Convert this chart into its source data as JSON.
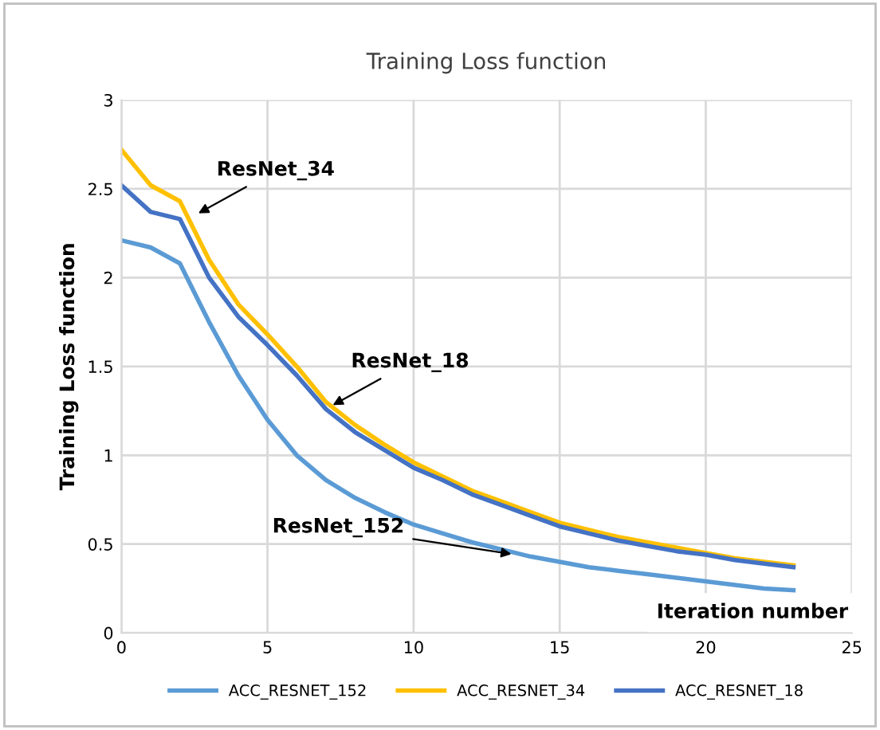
{
  "chart_data": {
    "type": "line",
    "title": "Training Loss function",
    "ylabel": "Training Loss function",
    "xlabel": "Iteration number",
    "x": [
      0,
      1,
      2,
      3,
      4,
      5,
      6,
      7,
      8,
      9,
      10,
      11,
      12,
      13,
      14,
      15,
      16,
      17,
      18,
      19,
      20,
      21,
      22,
      23
    ],
    "series": [
      {
        "name": "ACC_RESNET_152",
        "color": "#5b9bd5",
        "values": [
          2.21,
          2.17,
          2.08,
          1.75,
          1.45,
          1.2,
          1.0,
          0.86,
          0.76,
          0.68,
          0.61,
          0.56,
          0.51,
          0.47,
          0.43,
          0.4,
          0.37,
          0.35,
          0.33,
          0.31,
          0.29,
          0.27,
          0.25,
          0.24
        ]
      },
      {
        "name": "ACC_RESNET_34",
        "color": "#ffc000",
        "values": [
          2.72,
          2.52,
          2.43,
          2.1,
          1.85,
          1.68,
          1.5,
          1.3,
          1.17,
          1.06,
          0.96,
          0.88,
          0.8,
          0.74,
          0.68,
          0.62,
          0.58,
          0.54,
          0.51,
          0.48,
          0.45,
          0.42,
          0.4,
          0.38
        ]
      },
      {
        "name": "ACC_RESNET_18",
        "color": "#4472c4",
        "values": [
          2.52,
          2.37,
          2.33,
          2.0,
          1.78,
          1.62,
          1.45,
          1.26,
          1.13,
          1.03,
          0.93,
          0.86,
          0.78,
          0.72,
          0.66,
          0.6,
          0.56,
          0.52,
          0.49,
          0.46,
          0.44,
          0.41,
          0.39,
          0.37
        ]
      }
    ],
    "xlim": [
      0,
      25
    ],
    "ylim": [
      0,
      3
    ],
    "xticks": [
      0,
      5,
      10,
      15,
      20,
      25
    ],
    "yticks": [
      0,
      0.5,
      1,
      1.5,
      2,
      2.5,
      3
    ],
    "grid": true,
    "legend": "bottom",
    "marker": "none",
    "line_style": "solid",
    "annotations": [
      {
        "text": "ResNet_34",
        "x": 2.5,
        "y": 2.35
      },
      {
        "text": "ResNet_18",
        "x": 7.1,
        "y": 1.27
      },
      {
        "text": "ResNet_152",
        "x": 13.5,
        "y": 0.44
      }
    ]
  }
}
